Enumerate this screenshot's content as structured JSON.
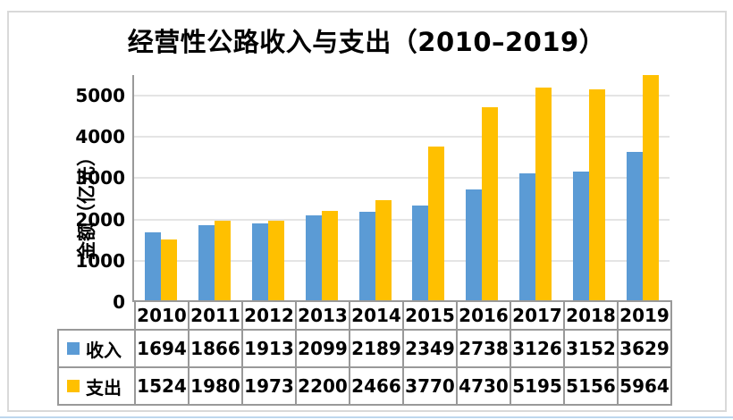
{
  "chart_data": {
    "type": "bar",
    "title": "经营性公路收入与支出（2010–2019）",
    "categories": [
      "2010",
      "2011",
      "2012",
      "2013",
      "2014",
      "2015",
      "2016",
      "2017",
      "2018",
      "2019"
    ],
    "series": [
      {
        "name": "收入",
        "color": "#5B9BD5",
        "values": [
          1694,
          1866,
          1913,
          2099,
          2189,
          2349,
          2738,
          3126,
          3152,
          3629
        ]
      },
      {
        "name": "支出",
        "color": "#FFC000",
        "values": [
          1524,
          1980,
          1973,
          2200,
          2466,
          3770,
          4730,
          5195,
          5156,
          5964
        ]
      }
    ],
    "xlabel": "",
    "ylabel": "金额（亿元）",
    "ylim": [
      0,
      5500
    ],
    "yticks": [
      0,
      1000,
      2000,
      3000,
      4000,
      5000
    ],
    "grid": true,
    "legend_position": "data-table-left",
    "colors": {
      "income_bar": "#5B9BD5",
      "expense_bar": "#FFC000",
      "gridline": "#E4E4E4",
      "axis_line": "#999999",
      "table_border": "#999999",
      "frame_border": "#D9D9D9",
      "text": "#000000"
    }
  }
}
